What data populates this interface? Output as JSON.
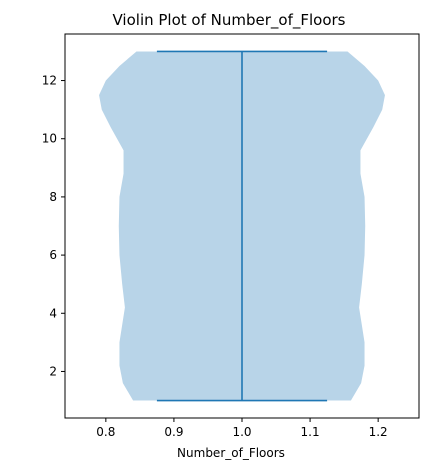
{
  "chart_data": {
    "type": "violin",
    "title": "Violin Plot of Number_of_Floors",
    "xlabel": "Number_of_Floors",
    "ylabel": "",
    "xlim": [
      0.74,
      1.26
    ],
    "ylim": [
      0.4,
      13.6
    ],
    "xticks": [
      0.8,
      0.9,
      1.0,
      1.1,
      1.2
    ],
    "xtick_labels": [
      "0.8",
      "0.9",
      "1.0",
      "1.1",
      "1.2"
    ],
    "yticks": [
      2,
      4,
      6,
      8,
      10,
      12
    ],
    "ytick_labels": [
      "2",
      "4",
      "6",
      "8",
      "10",
      "12"
    ],
    "grid": false,
    "position": 1.0,
    "min": 1,
    "max": 13,
    "whisker_cap_half_width": 0.125,
    "density_profile": [
      {
        "y": 1.0,
        "half_width": 0.16
      },
      {
        "y": 1.6,
        "half_width": 0.175
      },
      {
        "y": 2.2,
        "half_width": 0.18
      },
      {
        "y": 3.0,
        "half_width": 0.18
      },
      {
        "y": 3.6,
        "half_width": 0.176
      },
      {
        "y": 4.2,
        "half_width": 0.172
      },
      {
        "y": 5.0,
        "half_width": 0.176
      },
      {
        "y": 6.0,
        "half_width": 0.18
      },
      {
        "y": 7.0,
        "half_width": 0.181
      },
      {
        "y": 8.0,
        "half_width": 0.18
      },
      {
        "y": 8.8,
        "half_width": 0.174
      },
      {
        "y": 9.6,
        "half_width": 0.174
      },
      {
        "y": 10.4,
        "half_width": 0.193
      },
      {
        "y": 11.0,
        "half_width": 0.206
      },
      {
        "y": 11.5,
        "half_width": 0.21
      },
      {
        "y": 12.0,
        "half_width": 0.2
      },
      {
        "y": 12.5,
        "half_width": 0.18
      },
      {
        "y": 13.0,
        "half_width": 0.155
      }
    ],
    "body_color": "#b8d4e8",
    "line_color": "#1f77b4"
  }
}
